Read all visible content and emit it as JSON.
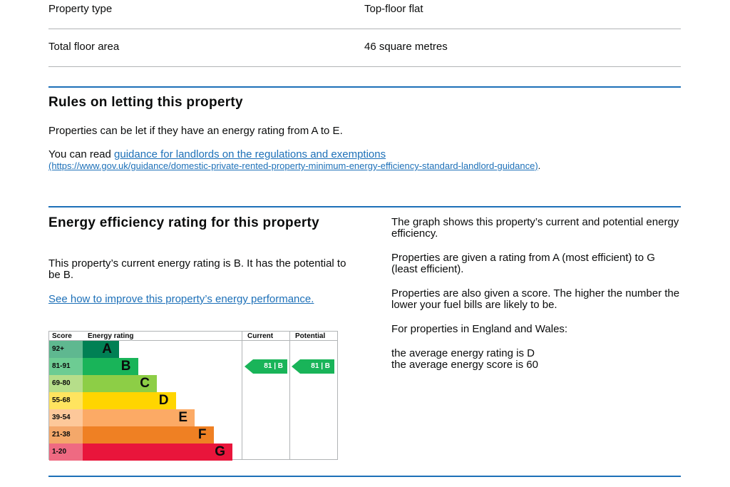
{
  "summary": {
    "rows": [
      [
        "Property type",
        "Top-floor flat"
      ],
      [
        "Total floor area",
        "46 square metres"
      ]
    ]
  },
  "letting": {
    "heading": "Rules on letting this property",
    "text": "Properties can be let if they have an energy rating from A to E.",
    "read_prefix": "You can read ",
    "link": "guidance for landlords on the regulations and exemptions",
    "url": "(https://www.gov.uk/guidance/domestic-private-rented-property-minimum-energy-efficiency-standard-landlord-guidance)",
    "suffix": "."
  },
  "efficiency": {
    "heading": "Energy efficiency rating for this property",
    "text": "This property’s current energy rating is B. It has the potential to be B.",
    "link": "See how to improve this property’s energy performance.",
    "side": [
      "The graph shows this property’s current and potential energy efficiency.",
      "Properties are given a rating from A (most efficient) to G (least efficient).",
      "Properties are also given a score. The higher the number the lower your fuel bills are likely to be.",
      "For properties in England and Wales:"
    ],
    "averages": [
      "the average energy rating is D",
      "the average energy score is 60"
    ],
    "chart": {
      "headers": [
        "Score",
        "Energy rating",
        "Current",
        "Potential"
      ],
      "rows": [
        {
          "score": "92+",
          "rating": "A",
          "color": "#008054",
          "light": "#5fb890"
        },
        {
          "score": "81-91",
          "rating": "B",
          "color": "#19b459",
          "light": "#6dcc93"
        },
        {
          "score": "69-80",
          "rating": "C",
          "color": "#8dce46",
          "light": "#b6de8a"
        },
        {
          "score": "55-68",
          "rating": "D",
          "color": "#ffd500",
          "light": "#ffe45f"
        },
        {
          "score": "39-54",
          "rating": "E",
          "color": "#fcaa65",
          "light": "#fdc89a"
        },
        {
          "score": "21-38",
          "rating": "F",
          "color": "#ef8023",
          "light": "#f4a86a"
        },
        {
          "score": "1-20",
          "rating": "G",
          "color": "#e9153b",
          "light": "#ef6a82"
        }
      ],
      "current": "81 | B",
      "potential": "81 | B"
    }
  }
}
